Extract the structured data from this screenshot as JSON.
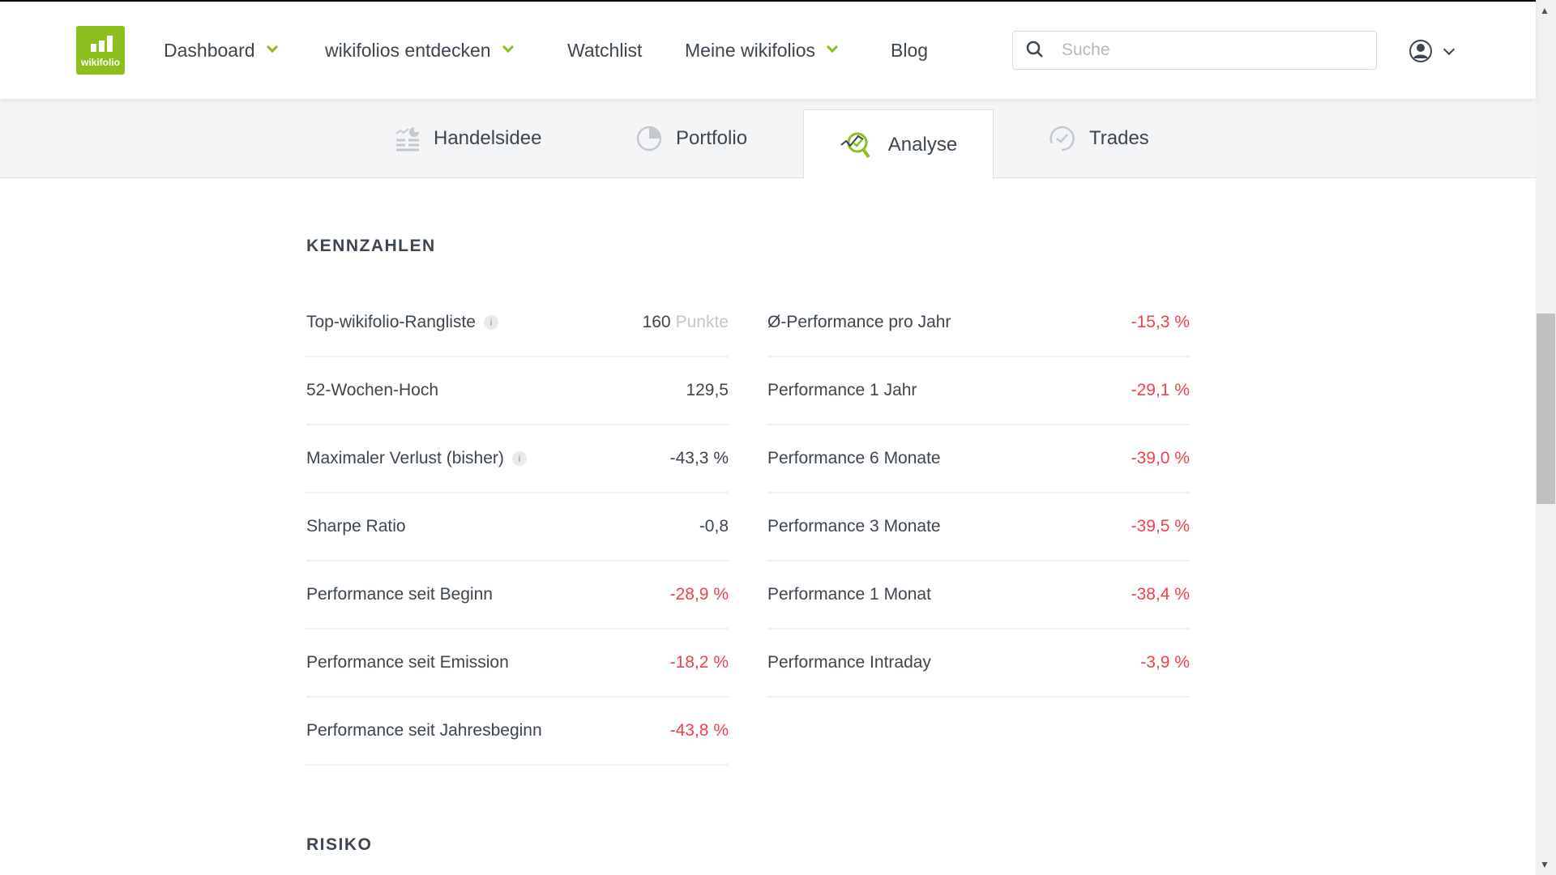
{
  "header": {
    "logo_text": "wikifolio",
    "nav": [
      {
        "label": "Dashboard",
        "dropdown": true
      },
      {
        "label": "wikifolios entdecken",
        "dropdown": true
      },
      {
        "label": "Watchlist",
        "dropdown": false
      },
      {
        "label": "Meine wikifolios",
        "dropdown": true
      },
      {
        "label": "Blog",
        "dropdown": false
      }
    ],
    "search_placeholder": "Suche",
    "accent": "#8cbf1e"
  },
  "tabs": [
    {
      "label": "Handelsidee",
      "icon": "trading-idea-icon"
    },
    {
      "label": "Portfolio",
      "icon": "pie-chart-icon"
    },
    {
      "label": "Analyse",
      "icon": "analysis-magnifier-icon",
      "active": true
    },
    {
      "label": "Trades",
      "icon": "trades-check-icon"
    }
  ],
  "kennzahlen": {
    "title": "KENNZAHLEN",
    "left": [
      {
        "label": "Top-wikifolio-Rangliste",
        "info": true,
        "value": "160",
        "unit": "Punkte"
      },
      {
        "label": "52-Wochen-Hoch",
        "value": "129,5"
      },
      {
        "label": "Maximaler Verlust (bisher)",
        "info": true,
        "value": "-43,3 %"
      },
      {
        "label": "Sharpe Ratio",
        "value": "-0,8"
      },
      {
        "label": "Performance seit Beginn",
        "value": "-28,9 %",
        "negative": true
      },
      {
        "label": "Performance seit Emission",
        "value": "-18,2 %",
        "negative": true
      },
      {
        "label": "Performance seit Jahresbeginn",
        "value": "-43,8 %",
        "negative": true
      }
    ],
    "right": [
      {
        "label": "Ø-Performance pro Jahr",
        "value": "-15,3 %",
        "negative": true
      },
      {
        "label": "Performance 1 Jahr",
        "value": "-29,1 %",
        "negative": true
      },
      {
        "label": "Performance 6 Monate",
        "value": "-39,0 %",
        "negative": true
      },
      {
        "label": "Performance 3 Monate",
        "value": "-39,5 %",
        "negative": true
      },
      {
        "label": "Performance 1 Monat",
        "value": "-38,4 %",
        "negative": true
      },
      {
        "label": "Performance Intraday",
        "value": "-3,9 %",
        "negative": true
      }
    ]
  },
  "risiko": {
    "title": "RISIKO"
  },
  "colors": {
    "negative": "#f0414d",
    "text": "#3c4650"
  }
}
